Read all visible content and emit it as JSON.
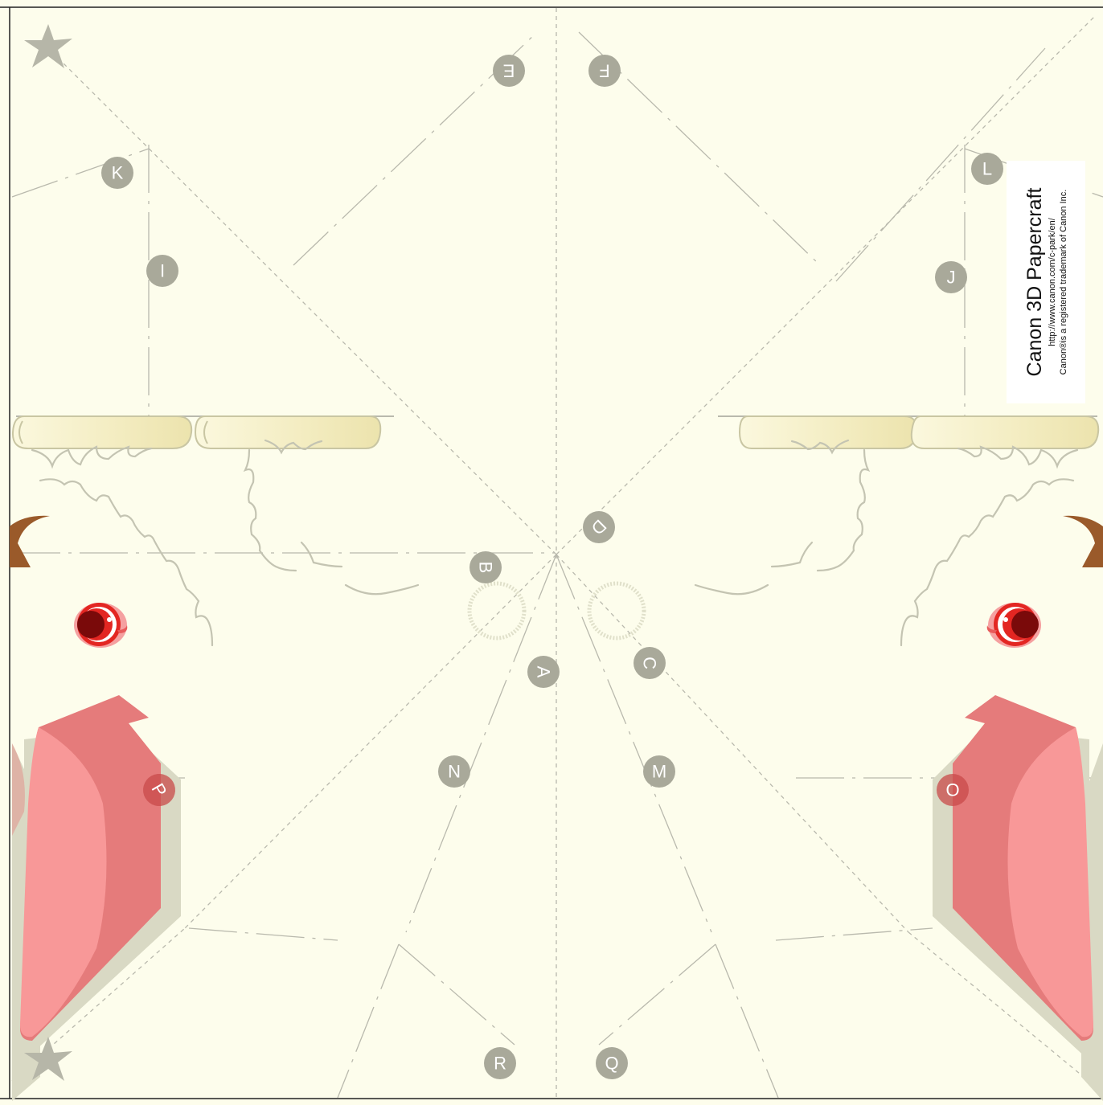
{
  "credit": {
    "title": "Canon 3D Papercraft",
    "url": "http://www.canon.com/c-park/en/",
    "trademark": "Canon®is a registered trademark of Canon Inc."
  },
  "labels": {
    "a": "A",
    "b": "B",
    "c": "C",
    "d": "D",
    "e": "E",
    "f": "F",
    "i": "I",
    "j": "J",
    "k": "K",
    "l": "L",
    "m": "M",
    "n": "N",
    "o": "O",
    "p": "P",
    "q": "Q",
    "r": "R"
  },
  "colors": {
    "paper": "#fdfdec",
    "label_gray": "#a9a99a",
    "beak_light": "#f89898",
    "beak_dark": "#e57b7b",
    "beak_shadow": "#d9d9c4",
    "horn": "#f4eec4",
    "ear": "#9a5a2a",
    "eye_red": "#e32622",
    "star": "#b6b6a8"
  }
}
